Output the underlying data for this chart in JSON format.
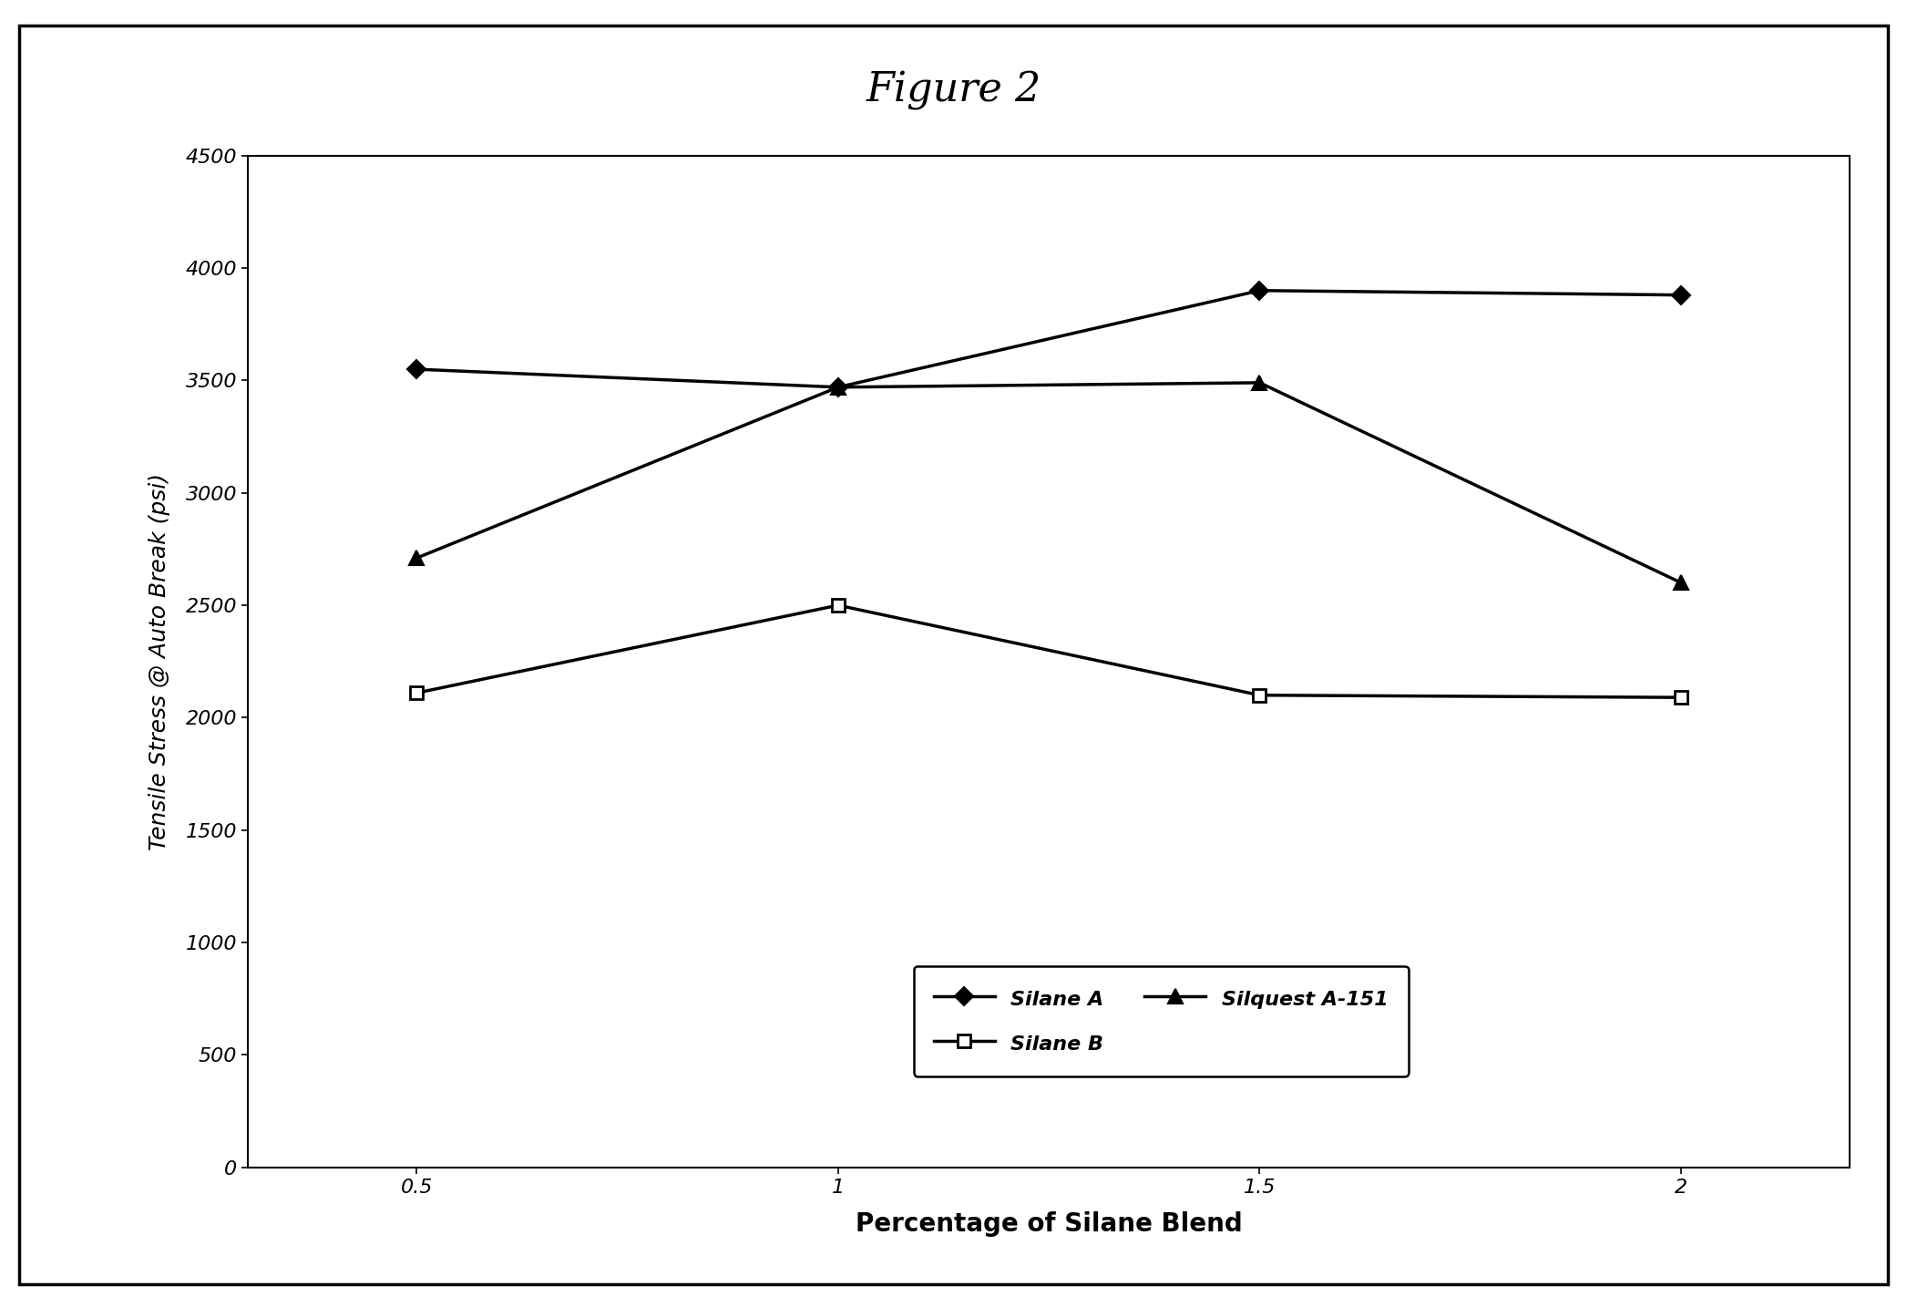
{
  "title": "Figure 2",
  "xlabel": "Percentage of Silane Blend",
  "ylabel": "Tensile Stress @ Auto Break (psi)",
  "x_values": [
    0.5,
    1,
    1.5,
    2
  ],
  "x_ticks": [
    0.5,
    1,
    1.5,
    2
  ],
  "x_tick_labels": [
    "0.5",
    "1",
    "1.5",
    "2"
  ],
  "ylim": [
    0,
    4500
  ],
  "y_ticks": [
    0,
    500,
    1000,
    1500,
    2000,
    2500,
    3000,
    3500,
    4000,
    4500
  ],
  "series": [
    {
      "label": "Silane A",
      "values": [
        3550,
        3470,
        3900,
        3880
      ],
      "marker": "D",
      "color": "#000000",
      "linewidth": 2.5,
      "markersize": 10,
      "markerfacecolor": "#000000",
      "markeredgecolor": "#000000",
      "markeredgewidth": 1.5
    },
    {
      "label": "Silane B",
      "values": [
        2110,
        2500,
        2100,
        2090
      ],
      "marker": "s",
      "color": "#000000",
      "linewidth": 2.5,
      "markersize": 10,
      "markerfacecolor": "#ffffff",
      "markeredgecolor": "#000000",
      "markeredgewidth": 2.0
    },
    {
      "label": "Silquest A-151",
      "values": [
        2710,
        3470,
        3490,
        2600
      ],
      "marker": "^",
      "color": "#000000",
      "linewidth": 2.5,
      "markersize": 11,
      "markerfacecolor": "#000000",
      "markeredgecolor": "#000000",
      "markeredgewidth": 1.5
    }
  ],
  "background_color": "#ffffff",
  "title_fontsize": 32,
  "xlabel_fontsize": 20,
  "ylabel_fontsize": 18,
  "tick_fontsize": 16,
  "legend_fontsize": 16,
  "figure_border_linewidth": 2.5
}
